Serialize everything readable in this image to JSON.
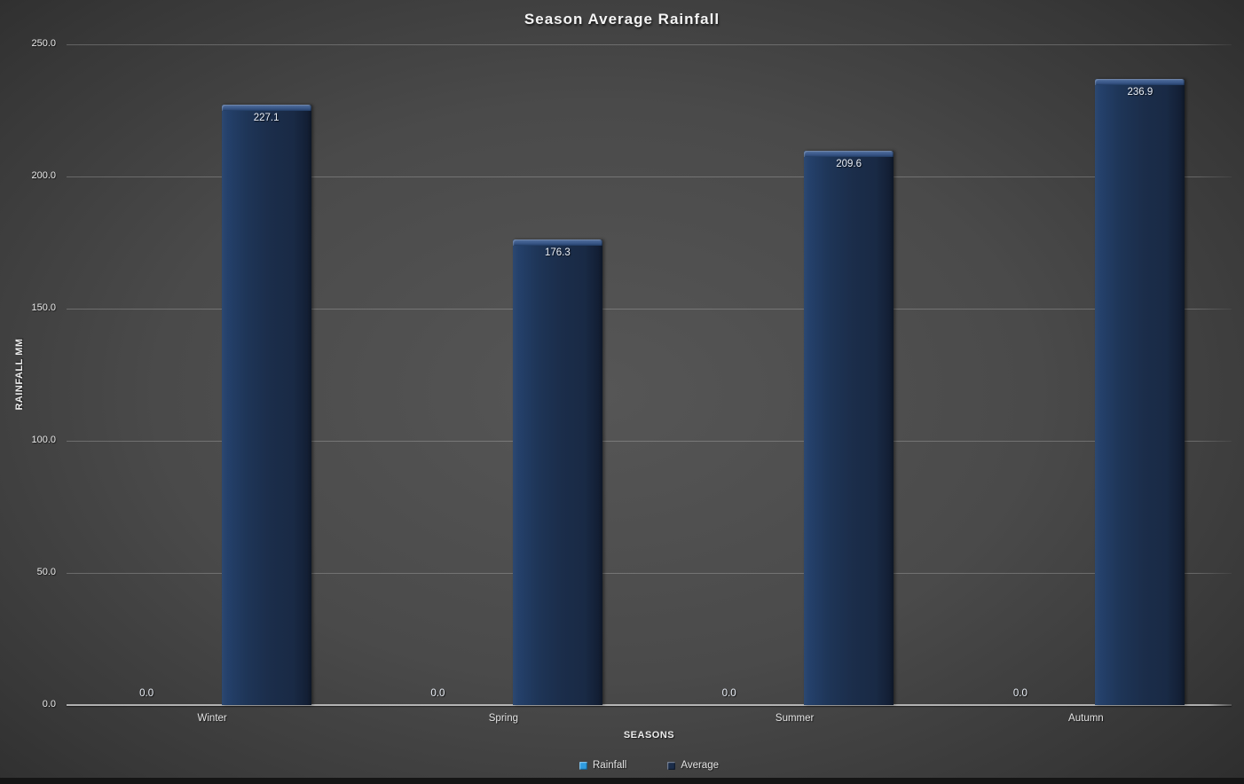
{
  "title": "Season Average Rainfall",
  "chart_data": {
    "type": "bar",
    "title": "Season Average Rainfall",
    "xlabel": "SEASONS",
    "ylabel": "RAINFALL MM",
    "categories": [
      "Winter",
      "Spring",
      "Summer",
      "Autumn"
    ],
    "series": [
      {
        "name": "Rainfall",
        "color": "#2f9ce0",
        "values": [
          0.0,
          0.0,
          0.0,
          0.0
        ],
        "labels": [
          "0.0",
          "0.0",
          "0.0",
          "0.0"
        ]
      },
      {
        "name": "Average",
        "color": "#1b2d4a",
        "values": [
          227.1,
          176.3,
          209.6,
          236.9
        ],
        "labels": [
          "227.1",
          "176.3",
          "209.6",
          "236.9"
        ]
      }
    ],
    "ylim": [
      0,
      250
    ],
    "yticks": [
      0,
      50,
      100,
      150,
      200,
      250
    ],
    "ytick_labels": [
      "0.0",
      "50.0",
      "100.0",
      "150.0",
      "200.0",
      "250.0"
    ],
    "grid": true,
    "legend_position": "bottom",
    "colors": {
      "background_center": "#565656",
      "background_edge": "#272727",
      "bar_fill": "#1b2d4a",
      "bar_bevel": "#3c5a8b",
      "gridline": "#6f6f6f",
      "axis_line": "#b0b0b0",
      "text": "#ececec"
    }
  }
}
